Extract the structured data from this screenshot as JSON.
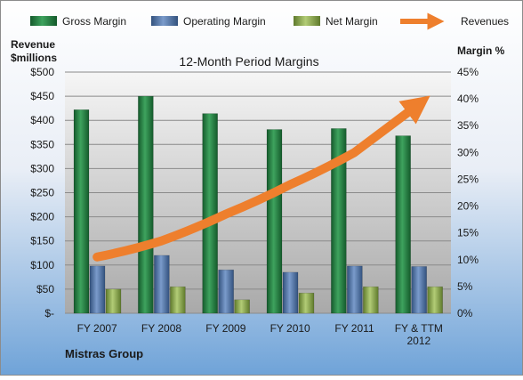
{
  "chart_data": {
    "type": "bar",
    "title": "12-Month Period Margins",
    "footer": "Mistras Group",
    "categories": [
      "FY 2007",
      "FY 2008",
      "FY 2009",
      "FY 2010",
      "FY 2011",
      "FY & TTM 2012"
    ],
    "left_axis": {
      "label_line1": "Revenue",
      "label_line2": "$millions",
      "range": [
        0,
        500
      ],
      "ticks": [
        "$-",
        "$50",
        "$100",
        "$150",
        "$200",
        "$250",
        "$300",
        "$350",
        "$400",
        "$450",
        "$500"
      ]
    },
    "right_axis": {
      "label": "Margin %",
      "range": [
        0,
        45
      ],
      "ticks": [
        "0%",
        "5%",
        "10%",
        "15%",
        "20%",
        "25%",
        "30%",
        "35%",
        "40%",
        "45%"
      ]
    },
    "series": [
      {
        "name": "Gross Margin",
        "axis": "left",
        "color": "#1e7a3e",
        "values": [
          422,
          450,
          414,
          381,
          383,
          368
        ]
      },
      {
        "name": "Operating Margin",
        "axis": "left",
        "color": "#4a6fa5",
        "values": [
          98,
          120,
          90,
          85,
          98,
          97
        ]
      },
      {
        "name": "Net Margin",
        "axis": "left",
        "color": "#8aa64a",
        "values": [
          50,
          55,
          28,
          42,
          55,
          55
        ]
      },
      {
        "name": "Revenues",
        "axis": "right",
        "color": "#ee7f2d",
        "style": "arrow",
        "values": [
          10.5,
          13.5,
          18.5,
          24,
          30,
          39
        ]
      }
    ],
    "grid": true,
    "legend_position": "top"
  }
}
